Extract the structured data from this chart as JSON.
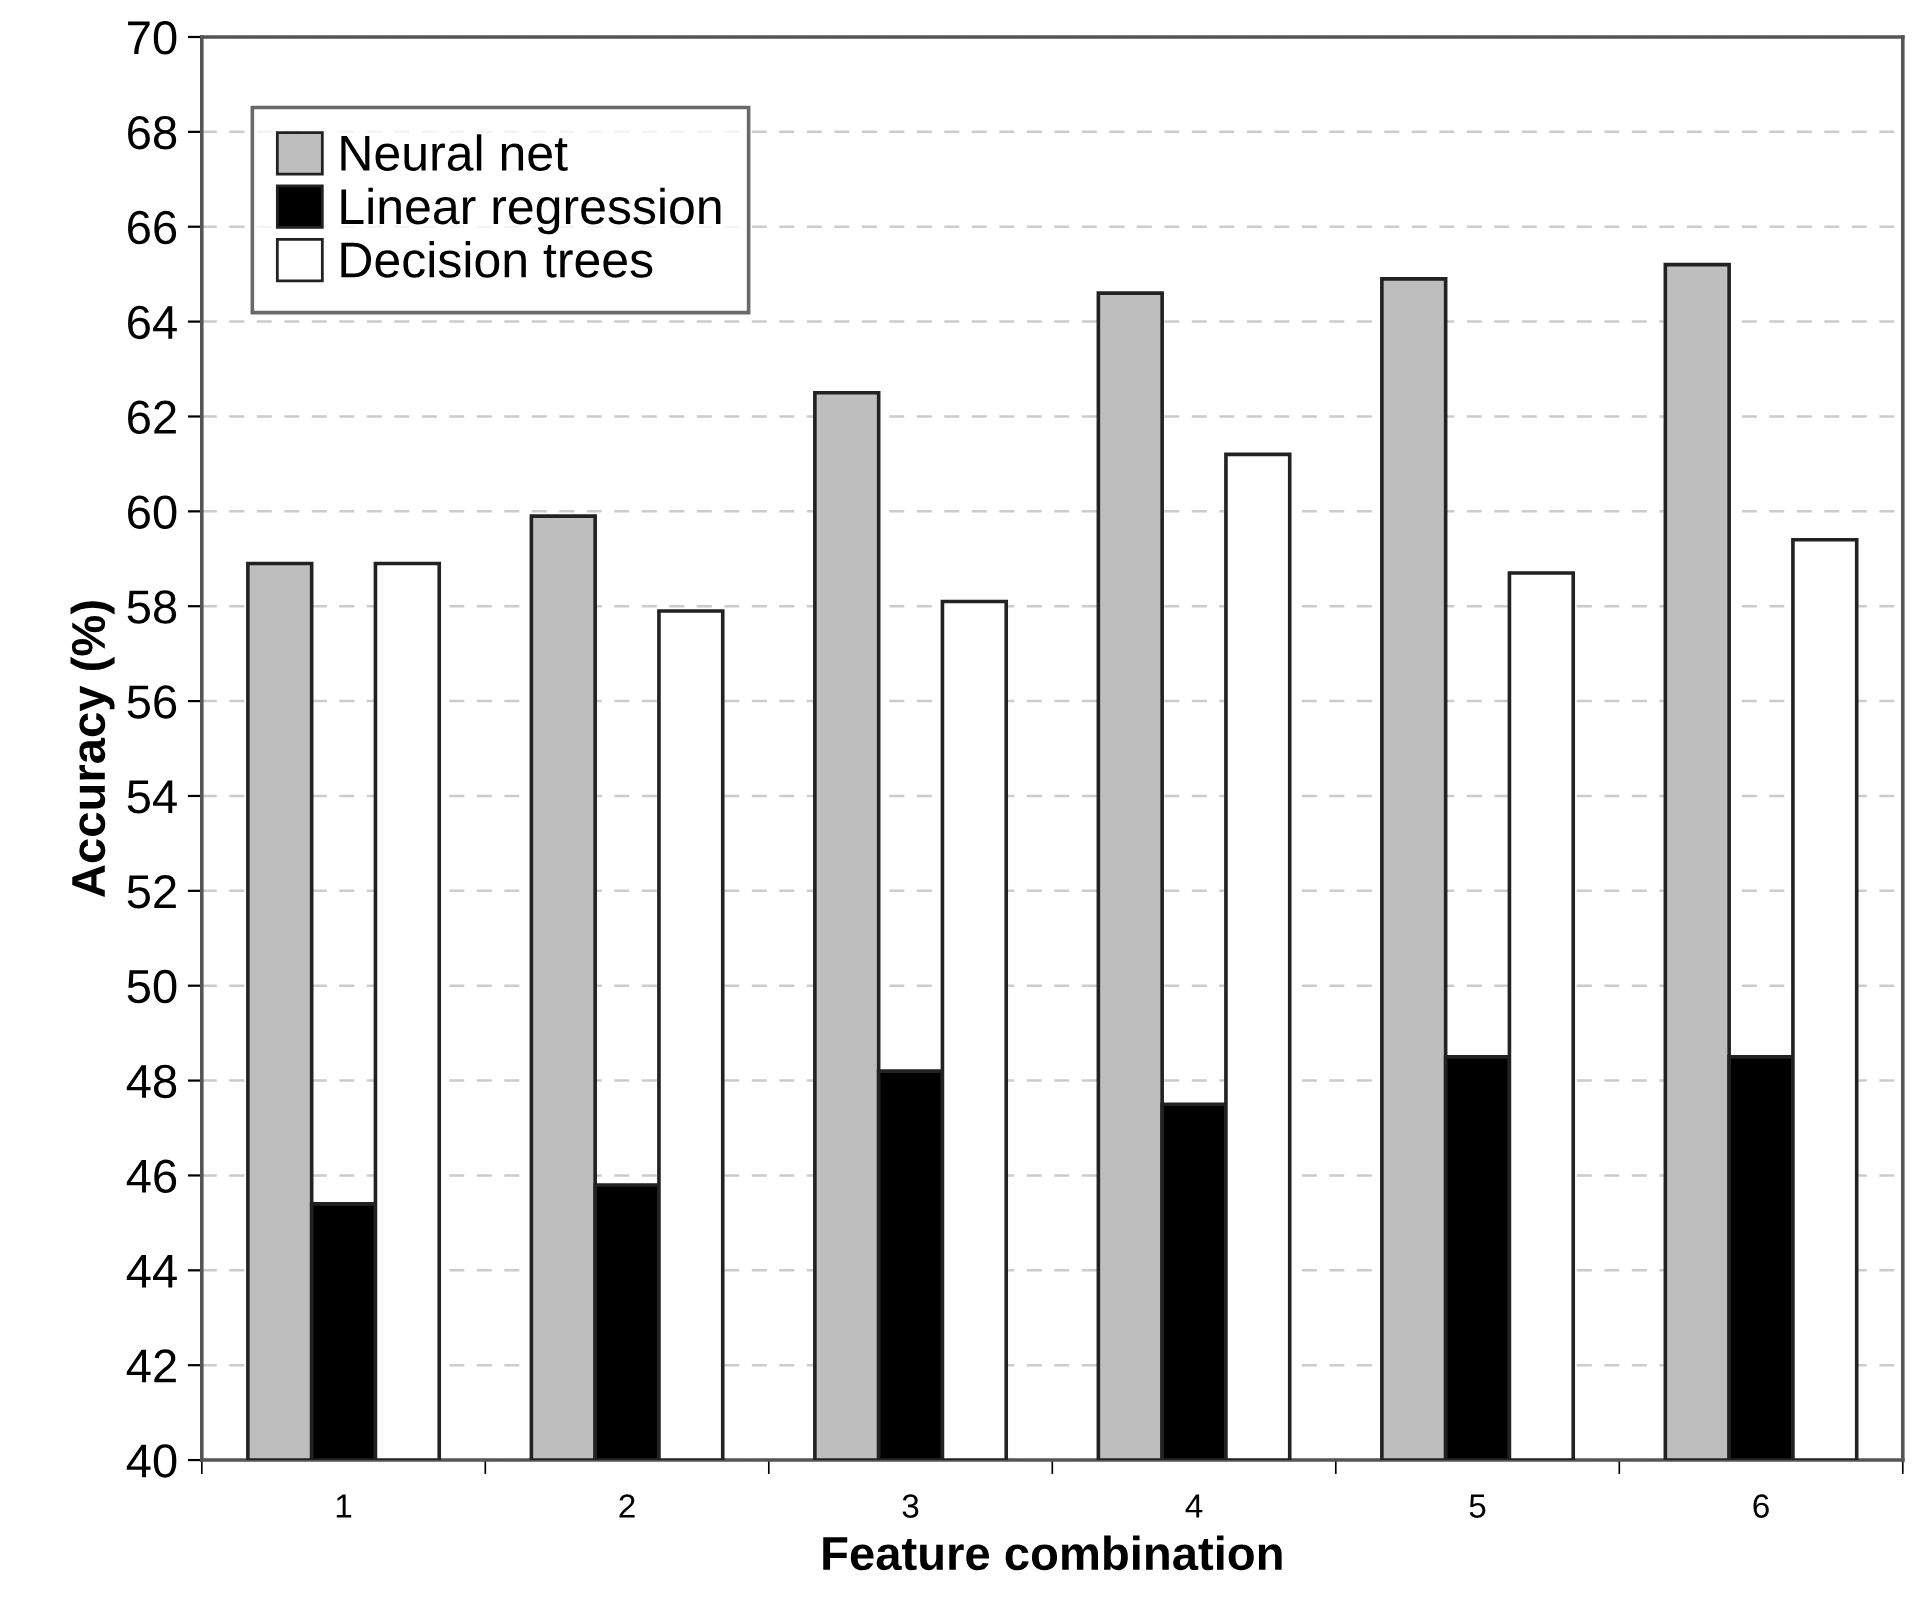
{
  "chart_data": {
    "type": "bar",
    "xlabel": "Feature combination",
    "ylabel": "Accuracy (%)",
    "categories": [
      "1",
      "2",
      "3",
      "4",
      "5",
      "6"
    ],
    "series": [
      {
        "name": "Neural net",
        "color": "#bebebe",
        "values": [
          58.9,
          59.9,
          62.5,
          64.6,
          64.9,
          65.2
        ]
      },
      {
        "name": "Linear regression",
        "color": "#000000",
        "values": [
          45.4,
          45.8,
          48.2,
          47.5,
          48.5,
          48.5
        ]
      },
      {
        "name": "Decision trees",
        "color": "#ffffff",
        "values": [
          58.9,
          57.9,
          58.1,
          61.2,
          58.7,
          59.4
        ]
      }
    ],
    "ylim": [
      40,
      70
    ],
    "yticks": [
      40,
      42,
      44,
      46,
      48,
      50,
      52,
      54,
      56,
      58,
      60,
      62,
      64,
      66,
      68,
      70
    ],
    "grid": "y",
    "legend": "top left"
  }
}
